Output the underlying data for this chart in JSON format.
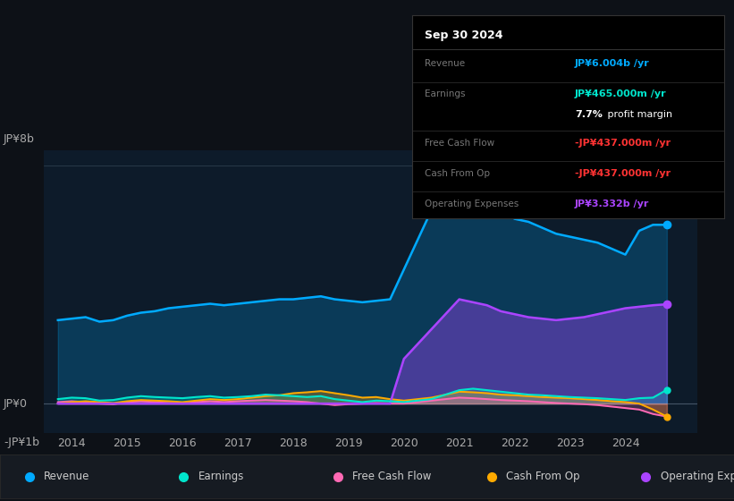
{
  "background_color": "#0d1117",
  "plot_bg_color": "#0d1b2a",
  "ylabel_top": "JP¥8b",
  "ylabel_zero": "JP¥0",
  "ylabel_neg": "-JP¥1b",
  "ylim": [
    -1.0,
    8.5
  ],
  "xlim": [
    2013.5,
    2025.3
  ],
  "xticks": [
    2014,
    2015,
    2016,
    2017,
    2018,
    2019,
    2020,
    2021,
    2022,
    2023,
    2024
  ],
  "colors": {
    "revenue": "#00aaff",
    "earnings": "#00e5cc",
    "free_cash_flow": "#ff69b4",
    "cash_from_op": "#ffaa00",
    "operating_expenses": "#aa44ff"
  },
  "tooltip": {
    "date": "Sep 30 2024",
    "revenue_label": "Revenue",
    "revenue_value": "JP¥6.004b /yr",
    "earnings_label": "Earnings",
    "earnings_value": "JP¥465.000m /yr",
    "profit_margin_bold": "7.7%",
    "profit_margin_rest": " profit margin",
    "fcf_label": "Free Cash Flow",
    "fcf_value": "-JP¥437.000m /yr",
    "cfop_label": "Cash From Op",
    "cfop_value": "-JP¥437.000m /yr",
    "opex_label": "Operating Expenses",
    "opex_value": "JP¥3.332b /yr"
  },
  "revenue": {
    "x": [
      2013.75,
      2014.0,
      2014.25,
      2014.5,
      2014.75,
      2015.0,
      2015.25,
      2015.5,
      2015.75,
      2016.0,
      2016.25,
      2016.5,
      2016.75,
      2017.0,
      2017.25,
      2017.5,
      2017.75,
      2018.0,
      2018.25,
      2018.5,
      2018.75,
      2019.0,
      2019.25,
      2019.5,
      2019.75,
      2020.0,
      2020.25,
      2020.5,
      2020.75,
      2021.0,
      2021.25,
      2021.5,
      2021.75,
      2022.0,
      2022.25,
      2022.5,
      2022.75,
      2023.0,
      2023.25,
      2023.5,
      2023.75,
      2024.0,
      2024.25,
      2024.5,
      2024.75
    ],
    "y": [
      2.8,
      2.85,
      2.9,
      2.75,
      2.8,
      2.95,
      3.05,
      3.1,
      3.2,
      3.25,
      3.3,
      3.35,
      3.3,
      3.35,
      3.4,
      3.45,
      3.5,
      3.5,
      3.55,
      3.6,
      3.5,
      3.45,
      3.4,
      3.45,
      3.5,
      4.5,
      5.5,
      6.5,
      7.2,
      7.5,
      7.3,
      6.8,
      6.5,
      6.2,
      6.1,
      5.9,
      5.7,
      5.6,
      5.5,
      5.4,
      5.2,
      5.0,
      5.8,
      6.0,
      6.0
    ]
  },
  "earnings": {
    "x": [
      2013.75,
      2014.0,
      2014.25,
      2014.5,
      2014.75,
      2015.0,
      2015.25,
      2015.5,
      2015.75,
      2016.0,
      2016.25,
      2016.5,
      2016.75,
      2017.0,
      2017.25,
      2017.5,
      2017.75,
      2018.0,
      2018.25,
      2018.5,
      2018.75,
      2019.0,
      2019.25,
      2019.5,
      2019.75,
      2020.0,
      2020.25,
      2020.5,
      2020.75,
      2021.0,
      2021.25,
      2021.5,
      2021.75,
      2022.0,
      2022.25,
      2022.5,
      2022.75,
      2023.0,
      2023.25,
      2023.5,
      2023.75,
      2024.0,
      2024.25,
      2024.5,
      2024.75
    ],
    "y": [
      0.15,
      0.2,
      0.18,
      0.1,
      0.12,
      0.2,
      0.25,
      0.22,
      0.2,
      0.18,
      0.22,
      0.25,
      0.2,
      0.22,
      0.25,
      0.3,
      0.28,
      0.25,
      0.22,
      0.25,
      0.15,
      0.1,
      0.05,
      0.1,
      0.08,
      0.05,
      0.1,
      0.15,
      0.3,
      0.45,
      0.5,
      0.45,
      0.4,
      0.35,
      0.3,
      0.28,
      0.25,
      0.22,
      0.2,
      0.18,
      0.15,
      0.12,
      0.18,
      0.2,
      0.465
    ]
  },
  "free_cash_flow": {
    "x": [
      2013.75,
      2014.0,
      2014.25,
      2014.5,
      2014.75,
      2015.0,
      2015.25,
      2015.5,
      2015.75,
      2016.0,
      2016.25,
      2016.5,
      2016.75,
      2017.0,
      2017.25,
      2017.5,
      2017.75,
      2018.0,
      2018.25,
      2018.5,
      2018.75,
      2019.0,
      2019.25,
      2019.5,
      2019.75,
      2020.0,
      2020.25,
      2020.5,
      2020.75,
      2021.0,
      2021.25,
      2021.5,
      2021.75,
      2022.0,
      2022.25,
      2022.5,
      2022.75,
      2023.0,
      2023.25,
      2023.5,
      2023.75,
      2024.0,
      2024.25,
      2024.5,
      2024.75
    ],
    "y": [
      0.05,
      0.08,
      0.05,
      0.0,
      -0.02,
      0.05,
      0.08,
      0.05,
      0.02,
      0.0,
      0.05,
      0.08,
      0.05,
      0.08,
      0.1,
      0.12,
      0.1,
      0.08,
      0.05,
      0.0,
      -0.05,
      -0.02,
      0.0,
      0.02,
      0.0,
      0.0,
      0.05,
      0.1,
      0.15,
      0.2,
      0.18,
      0.15,
      0.12,
      0.1,
      0.08,
      0.05,
      0.02,
      0.0,
      -0.02,
      -0.05,
      -0.1,
      -0.15,
      -0.2,
      -0.35,
      -0.437
    ]
  },
  "cash_from_op": {
    "x": [
      2013.75,
      2014.0,
      2014.25,
      2014.5,
      2014.75,
      2015.0,
      2015.25,
      2015.5,
      2015.75,
      2016.0,
      2016.25,
      2016.5,
      2016.75,
      2017.0,
      2017.25,
      2017.5,
      2017.75,
      2018.0,
      2018.25,
      2018.5,
      2018.75,
      2019.0,
      2019.25,
      2019.5,
      2019.75,
      2020.0,
      2020.25,
      2020.5,
      2020.75,
      2021.0,
      2021.25,
      2021.5,
      2021.75,
      2022.0,
      2022.25,
      2022.5,
      2022.75,
      2023.0,
      2023.25,
      2023.5,
      2023.75,
      2024.0,
      2024.25,
      2024.5,
      2024.75
    ],
    "y": [
      0.0,
      0.05,
      0.08,
      0.05,
      0.02,
      0.08,
      0.12,
      0.1,
      0.08,
      0.05,
      0.1,
      0.15,
      0.12,
      0.15,
      0.2,
      0.25,
      0.28,
      0.35,
      0.38,
      0.42,
      0.35,
      0.28,
      0.2,
      0.22,
      0.15,
      0.1,
      0.15,
      0.2,
      0.3,
      0.4,
      0.38,
      0.35,
      0.3,
      0.28,
      0.25,
      0.22,
      0.2,
      0.18,
      0.15,
      0.12,
      0.08,
      0.05,
      0.0,
      -0.2,
      -0.437
    ]
  },
  "operating_expenses": {
    "x": [
      2013.75,
      2014.0,
      2014.25,
      2014.5,
      2014.75,
      2015.0,
      2015.25,
      2015.5,
      2015.75,
      2016.0,
      2016.25,
      2016.5,
      2016.75,
      2017.0,
      2017.25,
      2017.5,
      2017.75,
      2018.0,
      2018.25,
      2018.5,
      2018.75,
      2019.0,
      2019.25,
      2019.5,
      2019.75,
      2020.0,
      2020.25,
      2020.5,
      2020.75,
      2021.0,
      2021.25,
      2021.5,
      2021.75,
      2022.0,
      2022.25,
      2022.5,
      2022.75,
      2023.0,
      2023.25,
      2023.5,
      2023.75,
      2024.0,
      2024.25,
      2024.5,
      2024.75
    ],
    "y": [
      0.0,
      0.0,
      0.0,
      0.0,
      0.0,
      0.0,
      0.0,
      0.0,
      0.0,
      0.0,
      0.0,
      0.0,
      0.0,
      0.0,
      0.0,
      0.0,
      0.0,
      0.0,
      0.0,
      0.0,
      0.0,
      0.0,
      0.0,
      0.0,
      0.0,
      1.5,
      2.0,
      2.5,
      3.0,
      3.5,
      3.4,
      3.3,
      3.1,
      3.0,
      2.9,
      2.85,
      2.8,
      2.85,
      2.9,
      3.0,
      3.1,
      3.2,
      3.25,
      3.3,
      3.332
    ]
  },
  "legend": [
    {
      "label": "Revenue",
      "color": "#00aaff"
    },
    {
      "label": "Earnings",
      "color": "#00e5cc"
    },
    {
      "label": "Free Cash Flow",
      "color": "#ff69b4"
    },
    {
      "label": "Cash From Op",
      "color": "#ffaa00"
    },
    {
      "label": "Operating Expenses",
      "color": "#aa44ff"
    }
  ]
}
